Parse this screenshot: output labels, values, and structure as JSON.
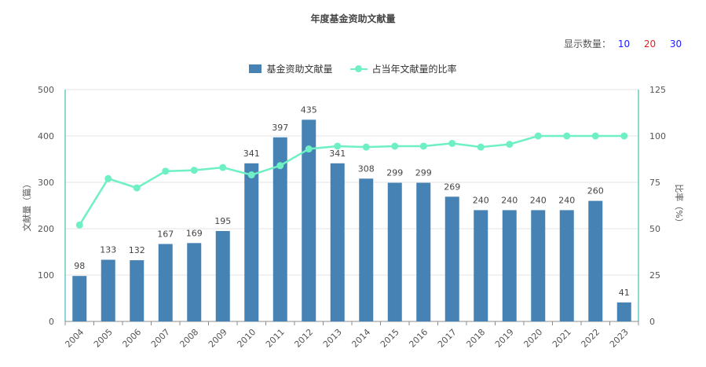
{
  "title": "年度基金资助文献量",
  "count_selector": {
    "label": "显示数量：",
    "options": [
      {
        "label": "10",
        "color": "#1a1aff"
      },
      {
        "label": "20",
        "color": "#e02020"
      },
      {
        "label": "30",
        "color": "#1a1aff"
      }
    ]
  },
  "legend": {
    "bar_label": "基金资助文献量",
    "line_label": "占当年文献量的比率"
  },
  "colors": {
    "bar": "#4682b4",
    "line": "#6ff0c4",
    "right_axis": "#20b2aa",
    "left_axis": "#20b2aa",
    "grid": "#e3e3e3"
  },
  "chart_data": {
    "type": "bar+line",
    "categories": [
      "2004",
      "2005",
      "2006",
      "2007",
      "2008",
      "2009",
      "2010",
      "2011",
      "2012",
      "2013",
      "2014",
      "2015",
      "2016",
      "2017",
      "2018",
      "2019",
      "2020",
      "2021",
      "2022",
      "2023"
    ],
    "series": [
      {
        "name": "基金资助文献量",
        "type": "bar",
        "axis": "left",
        "values": [
          98,
          133,
          132,
          167,
          169,
          195,
          341,
          397,
          435,
          341,
          308,
          299,
          299,
          269,
          240,
          240,
          240,
          240,
          260,
          41
        ]
      },
      {
        "name": "占当年文献量的比率",
        "type": "line",
        "axis": "right",
        "values": [
          52,
          77,
          72,
          81,
          81.5,
          83,
          79,
          84,
          93,
          94.5,
          94,
          94.5,
          94.5,
          96,
          94,
          95.5,
          100,
          100,
          100,
          100
        ]
      }
    ],
    "ylabel": "文献量（篇）",
    "y2label": "比率（%）",
    "ylim": [
      0,
      500
    ],
    "y2lim": [
      0,
      125
    ],
    "yticks": [
      "0",
      "100",
      "200",
      "300",
      "400",
      "500"
    ],
    "y2ticks": [
      "0",
      "25",
      "50",
      "75",
      "100",
      "125"
    ],
    "grid": true,
    "legend_position": "top-center"
  }
}
